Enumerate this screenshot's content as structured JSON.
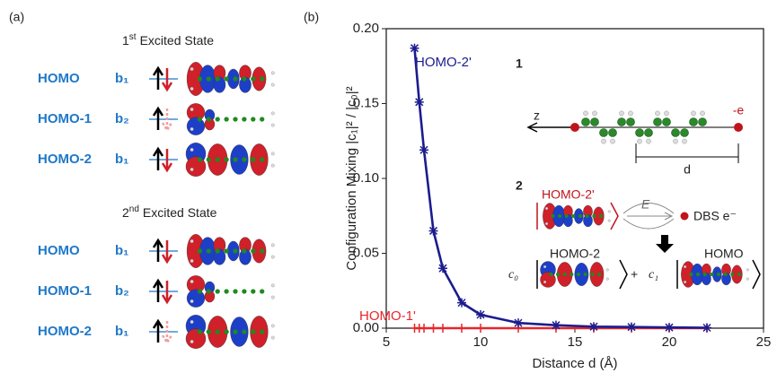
{
  "panel_a": {
    "label": "(a)",
    "groups": [
      {
        "ordinal": "1",
        "suffix": "st",
        "heading": "Excited State",
        "rows": [
          {
            "orbital": "HOMO",
            "symmetry": "b₁"
          },
          {
            "orbital": "HOMO-1",
            "symmetry": "b₂"
          },
          {
            "orbital": "HOMO-2",
            "symmetry": "b₁"
          }
        ]
      },
      {
        "ordinal": "2",
        "suffix": "nd",
        "heading": "Excited State",
        "rows": [
          {
            "orbital": "HOMO",
            "symmetry": "b₁"
          },
          {
            "orbital": "HOMO-1",
            "symmetry": "b₂"
          },
          {
            "orbital": "HOMO-2",
            "symmetry": "b₁"
          }
        ]
      }
    ]
  },
  "chart_data": {
    "type": "line",
    "panel_label": "(b)",
    "x_label": "Distance d (Å)",
    "y_label": "Configuration Mixing |c₁|² / |c₀|²",
    "x": [
      6.5,
      6.75,
      7,
      7.5,
      8,
      9,
      10,
      12,
      14,
      16,
      18,
      20,
      22
    ],
    "series": [
      {
        "name": "HOMO-2'",
        "color": "#1c1c8e",
        "marker": "star",
        "values": [
          0.187,
          0.151,
          0.119,
          0.065,
          0.04,
          0.017,
          0.009,
          0.0035,
          0.002,
          0.001,
          0.0008,
          0.0005,
          0.0003
        ]
      },
      {
        "name": "HOMO-1'",
        "color": "#e8262a",
        "marker": "plus",
        "values": [
          0,
          0,
          0,
          0,
          0,
          0,
          0,
          0,
          0,
          0,
          0,
          0,
          0
        ]
      }
    ],
    "xlim": [
      5,
      25
    ],
    "xticks": [
      5,
      10,
      15,
      20,
      25
    ],
    "ylim": [
      0,
      0.2
    ],
    "yticks": [
      {
        "value": 0,
        "label": "0.00"
      },
      {
        "value": 0.05,
        "label": "0.05"
      },
      {
        "value": 0.1,
        "label": "0.10"
      },
      {
        "value": 0.15,
        "label": "0.15"
      },
      {
        "value": 0.2,
        "label": "0.20"
      }
    ],
    "inset1": {
      "number": "1",
      "axis": "z",
      "charge": "-e",
      "distance": "d"
    },
    "inset2": {
      "number": "2",
      "orbital": "HOMO-2'",
      "field": "E",
      "electron": "DBS e⁻",
      "coef0": "c₀",
      "coef1": "c₁",
      "state0": "HOMO-2",
      "state1": "HOMO",
      "plus": "+"
    }
  }
}
